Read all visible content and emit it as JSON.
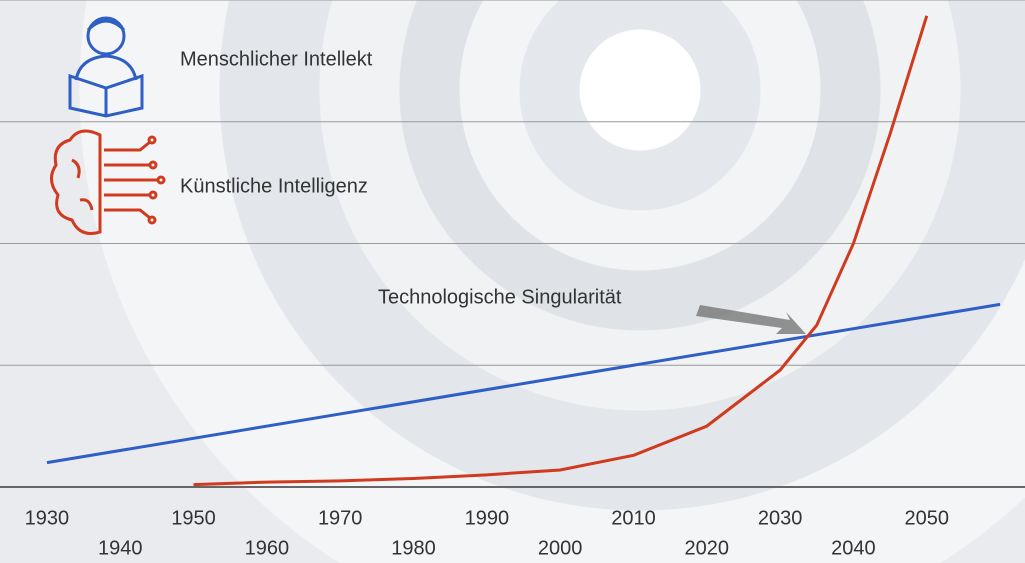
{
  "chart_data": {
    "type": "line",
    "annotation": "Technologische Singularität",
    "xlim": [
      1923.6,
      2063.4
    ],
    "ylim": [
      0,
      4
    ],
    "xticks": [
      1930,
      1940,
      1950,
      1960,
      1970,
      1980,
      1990,
      2000,
      2010,
      2020,
      2030,
      2040,
      2050
    ],
    "ygrid": [
      0,
      1,
      2,
      3,
      4
    ],
    "series": [
      {
        "name": "Menschlicher Intellekt",
        "color": "#2f5fc4",
        "x": [
          1930,
          2060
        ],
        "values": [
          0.2,
          1.5
        ]
      },
      {
        "name": "Künstliche Intelligenz",
        "color": "#d03a1f",
        "x": [
          1950,
          1960,
          1970,
          1980,
          1990,
          2000,
          2010,
          2020,
          2030,
          2035,
          2040,
          2045,
          2050
        ],
        "values": [
          0.02,
          0.04,
          0.05,
          0.07,
          0.1,
          0.14,
          0.26,
          0.5,
          0.96,
          1.33,
          2.0,
          2.9,
          3.87
        ]
      }
    ]
  }
}
